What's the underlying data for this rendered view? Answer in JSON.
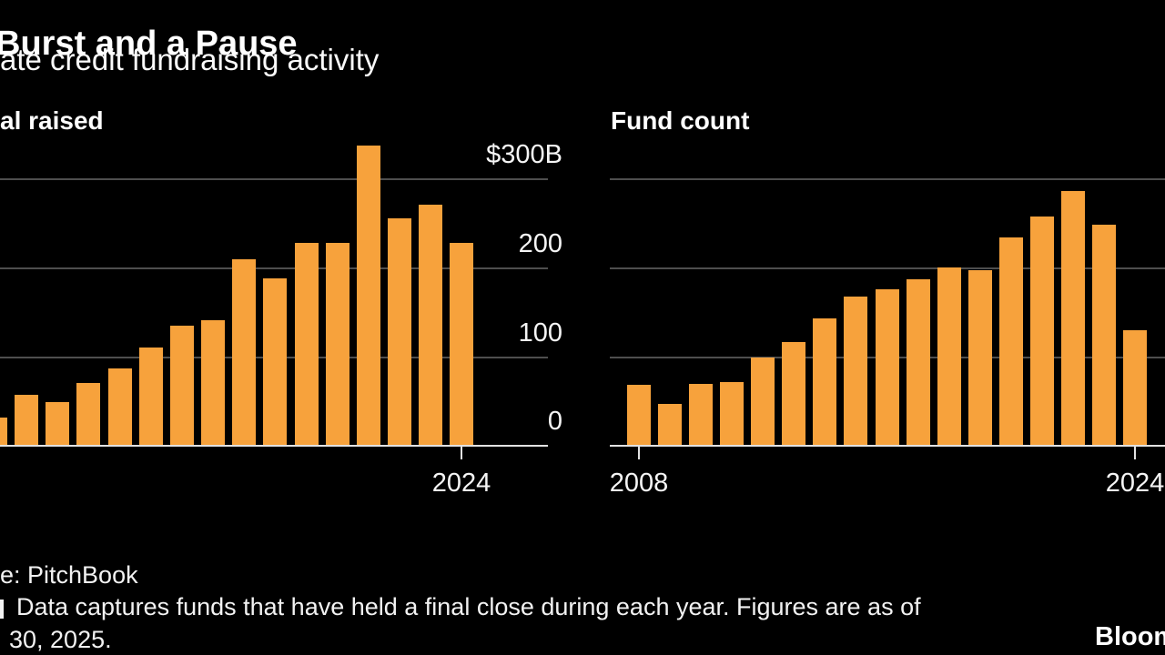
{
  "header": {
    "title": "Burst and a Pause",
    "subtitle": "ate credit fundraising activity"
  },
  "chart_data": [
    {
      "type": "bar",
      "panel_label": "al raised",
      "x": [
        2009,
        2010,
        2011,
        2012,
        2013,
        2014,
        2015,
        2016,
        2017,
        2018,
        2019,
        2020,
        2021,
        2022,
        2023,
        2024
      ],
      "values": [
        33,
        58,
        50,
        72,
        88,
        112,
        136,
        142,
        211,
        189,
        229,
        229,
        339,
        257,
        272,
        229
      ],
      "y_tick_labels": [
        "$300B",
        "200",
        "100",
        "0"
      ],
      "y_gridlines": [
        300,
        200,
        100,
        0
      ],
      "ylim": [
        0,
        350
      ],
      "x_tick_labels": [
        "2024"
      ],
      "clipped_left_edge": true,
      "grid": true,
      "legend": "none"
    },
    {
      "type": "bar",
      "panel_label": "Fund count",
      "x": [
        2008,
        2009,
        2010,
        2011,
        2012,
        2013,
        2014,
        2015,
        2016,
        2017,
        2018,
        2019,
        2020,
        2021,
        2022,
        2023,
        2024
      ],
      "values": [
        70,
        48,
        71,
        73,
        100,
        118,
        144,
        169,
        177,
        188,
        202,
        199,
        236,
        259,
        288,
        250,
        131
      ],
      "y_tick_labels": [],
      "y_gridlines": [
        300,
        200,
        100,
        0
      ],
      "ylim": [
        0,
        350
      ],
      "x_tick_labels": [
        "2008",
        "2024"
      ],
      "clipped_right_edge": true,
      "grid": true,
      "legend": "none"
    }
  ],
  "footer": {
    "source": "e: PitchBook",
    "note_line1": "Data captures funds that have held a final close during each year. Figures are as of",
    "note_line2": "30, 2025.",
    "logo": "Bloomberg"
  },
  "colors": {
    "background": "#000000",
    "bar": "#F7A23C",
    "gridline": "#4E4E4E",
    "axis_line": "#E2E2E2",
    "title_text": "#FFFFFF",
    "label_text": "#F5F5F5"
  }
}
